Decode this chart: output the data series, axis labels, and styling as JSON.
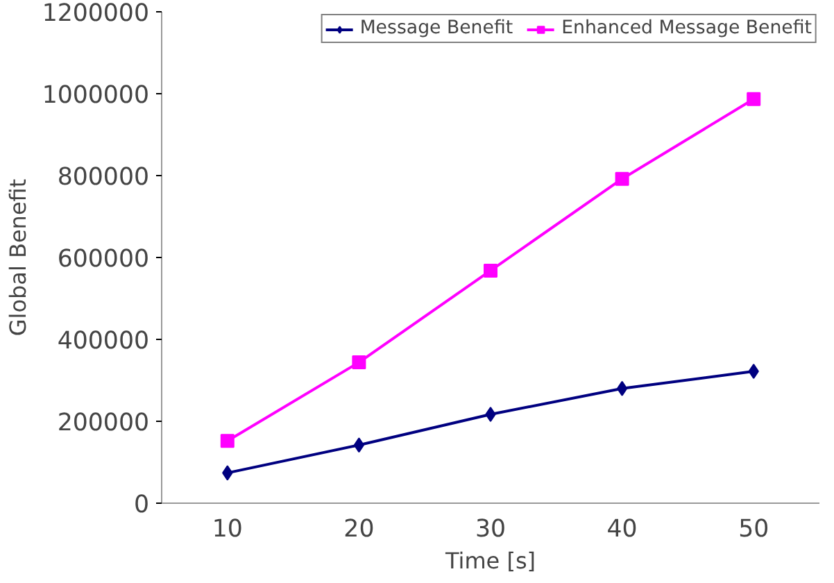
{
  "chart_data": {
    "type": "line",
    "xlabel": "Time [s]",
    "ylabel": "Global Benefit",
    "categories": [
      "10",
      "20",
      "30",
      "40",
      "50"
    ],
    "series": [
      {
        "name": "Message Benefit",
        "color": "#000080",
        "marker": "diamond",
        "values": [
          74000,
          142000,
          217000,
          280000,
          322000
        ]
      },
      {
        "name": "Enhanced Message Benefit",
        "color": "#ff00ff",
        "marker": "square",
        "values": [
          152000,
          344000,
          568000,
          792000,
          987000
        ]
      }
    ],
    "ylim": [
      0,
      1200000
    ],
    "yticks": [
      0,
      200000,
      400000,
      600000,
      800000,
      1000000,
      1200000
    ],
    "grid": false,
    "legend": "top"
  }
}
